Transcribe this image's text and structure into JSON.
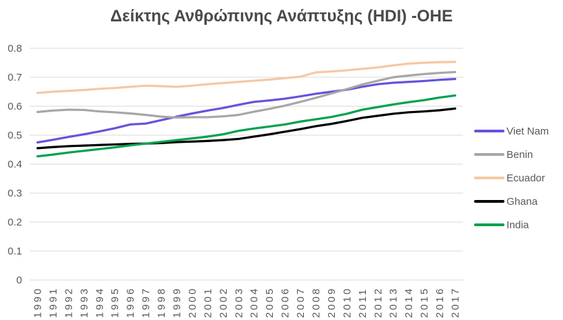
{
  "chart_data": {
    "type": "line",
    "title": "Δείκτης Ανθρώπινης Ανάπτυξης (HDI) -ΟΗΕ",
    "xlabel": "",
    "ylabel": "",
    "categories": [
      "1990",
      "1991",
      "1992",
      "1993",
      "1994",
      "1995",
      "1996",
      "1997",
      "1998",
      "1999",
      "2000",
      "2001",
      "2002",
      "2003",
      "2004",
      "2005",
      "2006",
      "2007",
      "2008",
      "2009",
      "2010",
      "2011",
      "2012",
      "2013",
      "2014",
      "2015",
      "2016",
      "2017"
    ],
    "series": [
      {
        "name": "Viet Nam",
        "color": "#6454dc",
        "values": [
          0.475,
          0.484,
          0.494,
          0.503,
          0.513,
          0.524,
          0.537,
          0.54,
          0.552,
          0.564,
          0.575,
          0.585,
          0.594,
          0.605,
          0.615,
          0.62,
          0.626,
          0.634,
          0.643,
          0.65,
          0.657,
          0.667,
          0.676,
          0.681,
          0.684,
          0.687,
          0.691,
          0.694
        ]
      },
      {
        "name": "Benin",
        "color": "#a7a7a7",
        "values": [
          0.58,
          0.585,
          0.588,
          0.587,
          0.582,
          0.579,
          0.575,
          0.57,
          0.564,
          0.561,
          0.562,
          0.562,
          0.565,
          0.57,
          0.581,
          0.591,
          0.602,
          0.615,
          0.629,
          0.644,
          0.659,
          0.675,
          0.688,
          0.7,
          0.706,
          0.711,
          0.715,
          0.718
        ]
      },
      {
        "name": "Ecuador",
        "color": "#f6c8a4",
        "values": [
          0.646,
          0.65,
          0.653,
          0.656,
          0.66,
          0.663,
          0.667,
          0.671,
          0.669,
          0.667,
          0.671,
          0.676,
          0.68,
          0.684,
          0.688,
          0.692,
          0.697,
          0.702,
          0.717,
          0.72,
          0.724,
          0.729,
          0.734,
          0.741,
          0.747,
          0.75,
          0.752,
          0.753
        ]
      },
      {
        "name": "Ghana",
        "color": "#000000",
        "values": [
          0.455,
          0.459,
          0.462,
          0.464,
          0.466,
          0.468,
          0.47,
          0.471,
          0.473,
          0.476,
          0.478,
          0.48,
          0.483,
          0.487,
          0.495,
          0.503,
          0.512,
          0.521,
          0.531,
          0.539,
          0.549,
          0.56,
          0.567,
          0.574,
          0.579,
          0.582,
          0.586,
          0.592
        ]
      },
      {
        "name": "India",
        "color": "#00a14f",
        "values": [
          0.427,
          0.433,
          0.44,
          0.446,
          0.452,
          0.458,
          0.465,
          0.471,
          0.477,
          0.483,
          0.489,
          0.495,
          0.503,
          0.515,
          0.523,
          0.53,
          0.537,
          0.547,
          0.555,
          0.563,
          0.574,
          0.588,
          0.597,
          0.606,
          0.614,
          0.621,
          0.63,
          0.637
        ]
      }
    ],
    "ylim": [
      0,
      0.8
    ],
    "yticks": [
      0,
      0.1,
      0.2,
      0.3,
      0.4,
      0.5,
      0.6,
      0.7,
      0.8
    ],
    "ytick_labels": [
      "0",
      "0.1",
      "0.2",
      "0.3",
      "0.4",
      "0.5",
      "0.6",
      "0.7",
      "0.8"
    ],
    "grid": true,
    "legend_position": "right",
    "grid_color": "#d9d9d9",
    "axis_text_color": "#595959",
    "title_color": "#4a4a4a",
    "background_color": "#ffffff"
  }
}
